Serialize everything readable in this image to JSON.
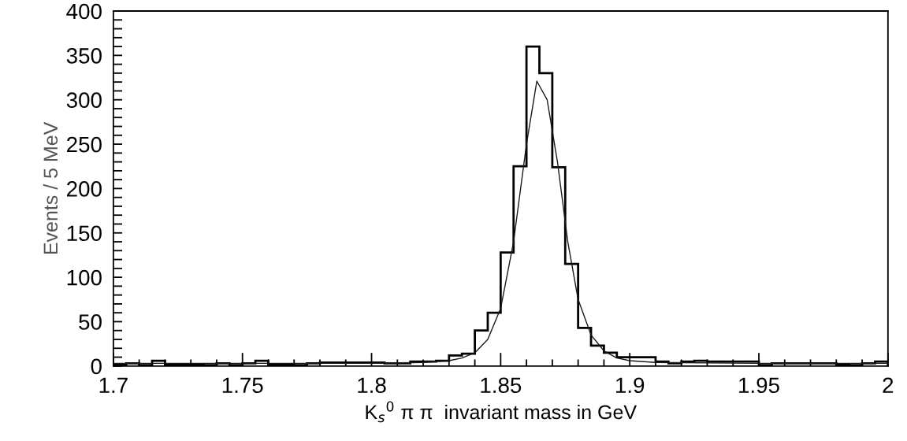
{
  "chart_data": {
    "type": "histogram",
    "xlabel": "K$_{s}$$^{0}$ π π  invariant mass in GeV",
    "ylabel": "Events / 5 MeV",
    "xlim": [
      1.7,
      2.0
    ],
    "ylim": [
      0,
      400
    ],
    "xticks": [
      1.7,
      {
        "value": 1.71,
        "label": null
      },
      {
        "value": 1.72,
        "label": null
      },
      {
        "value": 1.73,
        "label": null
      },
      {
        "value": 1.74,
        "label": null
      },
      1.75,
      {
        "value": 1.76,
        "label": null
      },
      {
        "value": 1.77,
        "label": null
      },
      {
        "value": 1.78,
        "label": null
      },
      {
        "value": 1.79,
        "label": null
      },
      1.8,
      {
        "value": 1.81,
        "label": null
      },
      {
        "value": 1.82,
        "label": null
      },
      {
        "value": 1.83,
        "label": null
      },
      {
        "value": 1.84,
        "label": null
      },
      1.85,
      {
        "value": 1.86,
        "label": null
      },
      {
        "value": 1.87,
        "label": null
      },
      {
        "value": 1.88,
        "label": null
      },
      {
        "value": 1.89,
        "label": null
      },
      1.9,
      {
        "value": 1.91,
        "label": null
      },
      {
        "value": 1.92,
        "label": null
      },
      {
        "value": 1.93,
        "label": null
      },
      {
        "value": 1.94,
        "label": null
      },
      1.95,
      {
        "value": 1.96,
        "label": null
      },
      {
        "value": 1.97,
        "label": null
      },
      {
        "value": 1.98,
        "label": null
      },
      {
        "value": 1.99,
        "label": null
      },
      2
    ],
    "yticks": [
      0,
      {
        "value": 10,
        "label": null
      },
      {
        "value": 20,
        "label": null
      },
      {
        "value": 30,
        "label": null
      },
      {
        "value": 40,
        "label": null
      },
      50,
      {
        "value": 60,
        "label": null
      },
      {
        "value": 70,
        "label": null
      },
      {
        "value": 80,
        "label": null
      },
      {
        "value": 90,
        "label": null
      },
      100,
      {
        "value": 110,
        "label": null
      },
      {
        "value": 120,
        "label": null
      },
      {
        "value": 130,
        "label": null
      },
      {
        "value": 140,
        "label": null
      },
      150,
      {
        "value": 160,
        "label": null
      },
      {
        "value": 170,
        "label": null
      },
      {
        "value": 180,
        "label": null
      },
      {
        "value": 190,
        "label": null
      },
      200,
      {
        "value": 210,
        "label": null
      },
      {
        "value": 220,
        "label": null
      },
      {
        "value": 230,
        "label": null
      },
      {
        "value": 240,
        "label": null
      },
      250,
      {
        "value": 260,
        "label": null
      },
      {
        "value": 270,
        "label": null
      },
      {
        "value": 280,
        "label": null
      },
      {
        "value": 290,
        "label": null
      },
      300,
      {
        "value": 310,
        "label": null
      },
      {
        "value": 320,
        "label": null
      },
      {
        "value": 330,
        "label": null
      },
      {
        "value": 340,
        "label": null
      },
      350,
      {
        "value": 360,
        "label": null
      },
      {
        "value": 370,
        "label": null
      },
      {
        "value": 380,
        "label": null
      },
      {
        "value": 390,
        "label": null
      },
      400
    ],
    "grid": false,
    "series": [
      {
        "type": "histogram",
        "color": "#000000",
        "bins": [
          1.7,
          1.705,
          1.71,
          1.715,
          1.72,
          1.725,
          1.73,
          1.735,
          1.74,
          1.745,
          1.75,
          1.755,
          1.76,
          1.765,
          1.77,
          1.775,
          1.78,
          1.785,
          1.79,
          1.795,
          1.8,
          1.805,
          1.81,
          1.815,
          1.82,
          1.825,
          1.83,
          1.835,
          1.84,
          1.845,
          1.85,
          1.855,
          1.86,
          1.865,
          1.87,
          1.875,
          1.88,
          1.885,
          1.89,
          1.895,
          1.9,
          1.905,
          1.91,
          1.915,
          1.92,
          1.925,
          1.93,
          1.935,
          1.94,
          1.945,
          1.95,
          1.955,
          1.96,
          1.965,
          1.97,
          1.975,
          1.98,
          1.985,
          1.99,
          1.995,
          2.0
        ],
        "values": [
          2,
          3,
          1,
          6,
          2,
          2,
          2,
          1,
          3,
          1,
          3,
          6,
          2,
          2,
          1,
          3,
          4,
          4,
          4,
          4,
          4,
          3,
          3,
          5,
          5,
          6,
          12,
          14,
          40,
          60,
          128,
          225,
          360,
          330,
          224,
          115,
          43,
          23,
          15,
          10,
          10,
          10,
          5,
          3,
          5,
          6,
          5,
          5,
          5,
          5,
          1,
          3,
          3,
          3,
          3,
          3,
          2,
          1,
          3,
          5
        ]
      },
      {
        "type": "line",
        "color": "#1a1a1a",
        "x": [
          1.7,
          1.8,
          1.82,
          1.83,
          1.835,
          1.84,
          1.845,
          1.85,
          1.855,
          1.86,
          1.864,
          1.868,
          1.872,
          1.876,
          1.88,
          1.885,
          1.89,
          1.895,
          1.9,
          1.91,
          1.95,
          2.0
        ],
        "values": [
          3,
          3,
          4,
          6,
          9,
          15,
          30,
          65,
          140,
          250,
          321,
          300,
          230,
          140,
          75,
          35,
          17,
          9,
          6,
          4,
          3,
          3
        ]
      }
    ]
  }
}
